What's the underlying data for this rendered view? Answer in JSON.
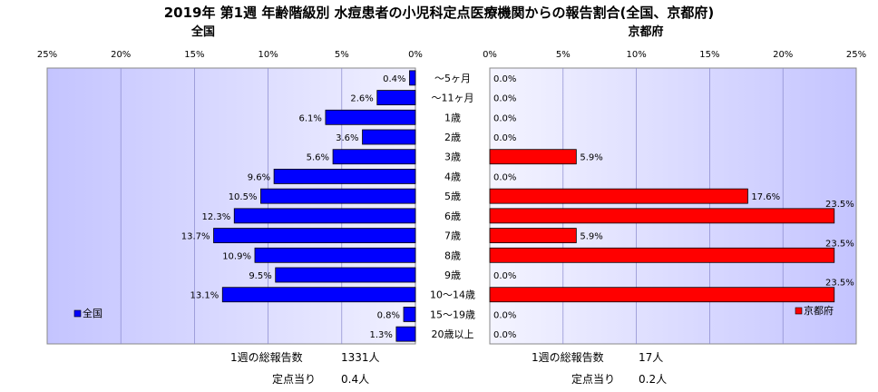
{
  "title": "2019年 第1週 年齢階級別 水痘患者の小児科定点医療機関からの報告割合(全国、京都府)",
  "chart_data": [
    {
      "type": "bar",
      "orientation": "horizontal",
      "direction": "right-to-left",
      "title": "全国",
      "xlabel": "",
      "ylabel": "",
      "xlim": [
        0,
        25
      ],
      "unit": "%",
      "grid": "vertical",
      "legend": "left",
      "ticks": [
        "25%",
        "20%",
        "15%",
        "10%",
        "5%",
        "0%"
      ],
      "categories": [
        "～5ヶ月",
        "～11ヶ月",
        "1歳",
        "2歳",
        "3歳",
        "4歳",
        "5歳",
        "6歳",
        "7歳",
        "8歳",
        "9歳",
        "10～14歳",
        "15～19歳",
        "20歳以上"
      ],
      "series": [
        {
          "name": "全国",
          "color": "#0000ff",
          "values": [
            0.4,
            2.6,
            6.1,
            3.6,
            5.6,
            9.6,
            10.5,
            12.3,
            13.7,
            10.9,
            9.5,
            13.1,
            0.8,
            1.3
          ],
          "labels": [
            "0.4%",
            "2.6%",
            "6.1%",
            "3.6%",
            "5.6%",
            "9.6%",
            "10.5%",
            "12.3%",
            "13.7%",
            "10.9%",
            "9.5%",
            "13.1%",
            "0.8%",
            "1.3%"
          ]
        }
      ]
    },
    {
      "type": "bar",
      "orientation": "horizontal",
      "direction": "left-to-right",
      "title": "京都府",
      "xlabel": "",
      "ylabel": "",
      "xlim": [
        0,
        25
      ],
      "unit": "%",
      "grid": "vertical",
      "legend": "right",
      "ticks": [
        "0%",
        "5%",
        "10%",
        "15%",
        "20%",
        "25%"
      ],
      "categories": [
        "～5ヶ月",
        "～11ヶ月",
        "1歳",
        "2歳",
        "3歳",
        "4歳",
        "5歳",
        "6歳",
        "7歳",
        "8歳",
        "9歳",
        "10～14歳",
        "15～19歳",
        "20歳以上"
      ],
      "series": [
        {
          "name": "京都府",
          "color": "#ff0000",
          "values": [
            0,
            0,
            0,
            0,
            5.9,
            0,
            17.6,
            23.5,
            5.9,
            23.5,
            0,
            23.5,
            0,
            0
          ],
          "labels": [
            "0.0%",
            "0.0%",
            "0.0%",
            "0.0%",
            "5.9%",
            "0.0%",
            "17.6%",
            "23.5%",
            "5.9%",
            "23.5%",
            "0.0%",
            "23.5%",
            "0.0%",
            "0.0%"
          ]
        }
      ]
    }
  ],
  "footer": {
    "national": {
      "total_label": "1週の総報告数",
      "total_value": "1331人",
      "per_site_label": "定点当り",
      "per_site_value": "0.4人"
    },
    "kyoto": {
      "total_label": "1週の総報告数",
      "total_value": "17人",
      "per_site_label": "定点当り",
      "per_site_value": "0.2人"
    }
  },
  "colors": {
    "plot_background": "#d6d6ff",
    "gridline": "#8888cc"
  }
}
